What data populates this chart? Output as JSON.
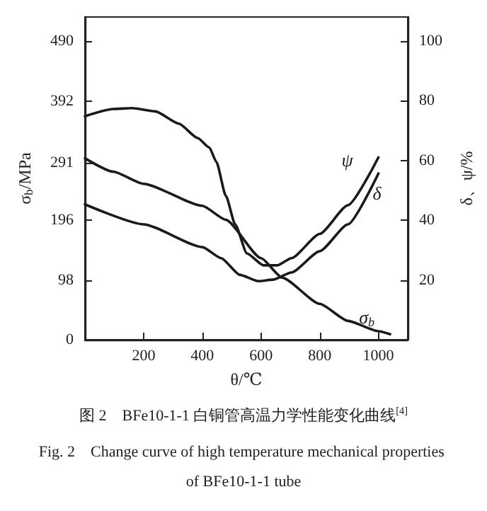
{
  "chart_data": {
    "type": "line",
    "title": "图 2　BFe10-1-1 白铜管高温力学性能变化曲线$^{[4]}$",
    "subtitle": "Fig. 2　Change curve of high temperature mechanical properties of BFe10-1-1 tube",
    "xlabel": "θ/℃",
    "ylabel": "σ$_{b}$/MPa",
    "y2label": "δ、ψ/%",
    "xlim": [
      0,
      1100
    ],
    "xticks": [
      200,
      400,
      600,
      800,
      1000
    ],
    "ylim": [
      0,
      530
    ],
    "yticks": [
      0,
      98,
      196,
      291,
      392,
      490
    ],
    "y2lim": [
      0,
      108
    ],
    "y2ticks": [
      20,
      40,
      60,
      80,
      100
    ],
    "grid": false,
    "legend": false,
    "marker": "none",
    "line_style": "solid",
    "series": [
      {
        "name": "ψ",
        "color": "#1a1a1a",
        "axis": "y2",
        "x": [
          0,
          96,
          160,
          240,
          320,
          384,
          424,
          448,
          480,
          512,
          552,
          608,
          656,
          704,
          800,
          896,
          1000
        ],
        "values": [
          74.8,
          77.2,
          77.5,
          76.4,
          72.3,
          67.5,
          64.3,
          59.5,
          48.2,
          38.6,
          28.9,
          24.9,
          24.9,
          27.3,
          35.4,
          45,
          61
        ]
      },
      {
        "name": "δ",
        "color": "#1a1a1a",
        "axis": "y2",
        "x": [
          0,
          200,
          400,
          464,
          528,
          592,
          640,
          704,
          800,
          896,
          1000
        ],
        "values": [
          45.3,
          38.6,
          31,
          27.3,
          21.7,
          19.6,
          20.1,
          22.5,
          29.6,
          38.6,
          55.6
        ]
      },
      {
        "name": "σ$_{b}$",
        "color": "#1a1a1a",
        "axis": "y",
        "x": [
          0,
          96,
          200,
          400,
          480,
          600,
          672,
          800,
          896,
          1000,
          1040
        ],
        "values": [
          298,
          276,
          256,
          220,
          197,
          134,
          102,
          59,
          31,
          14,
          9
        ]
      }
    ]
  }
}
